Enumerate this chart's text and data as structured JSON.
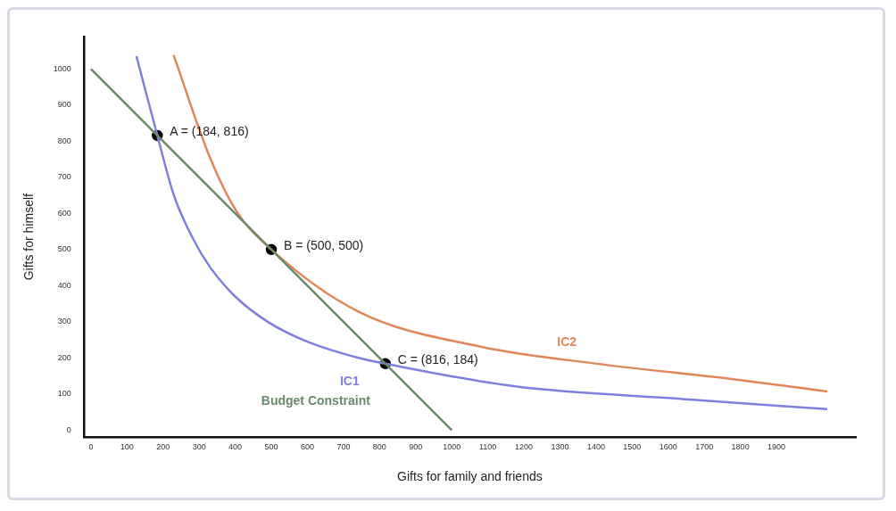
{
  "chart_data": {
    "type": "line",
    "xlabel": "Gifts for family and friends",
    "ylabel": "Gifts for himself",
    "xlim": [
      -20,
      2120
    ],
    "ylim": [
      -20,
      1090
    ],
    "xticks": [
      0,
      100,
      200,
      300,
      400,
      500,
      600,
      700,
      800,
      900,
      1000,
      1100,
      1200,
      1300,
      1400,
      1500,
      1600,
      1700,
      1800,
      1900
    ],
    "yticks": [
      0,
      100,
      200,
      300,
      400,
      500,
      600,
      700,
      800,
      900,
      1000
    ],
    "grid": false,
    "legend": false,
    "marker": "none",
    "line_style": "solid",
    "series": [
      {
        "name": "Budget Constraint",
        "color": "#6b8a6b",
        "x": [
          0,
          1000
        ],
        "values": [
          1000,
          0
        ]
      },
      {
        "name": "IC1",
        "color": "#7f7fe0",
        "x": [
          126,
          184,
          230,
          283,
          331,
          400,
          490,
          600,
          742,
          816,
          1176,
          1659,
          2041
        ],
        "values": [
          1036,
          816,
          650,
          530,
          450,
          370,
          300,
          245,
          200,
          184,
          121,
          85,
          58
        ]
      },
      {
        "name": "IC2",
        "color": "#e0875a",
        "x": [
          229,
          331,
          403,
          500,
          742,
          1080,
          1418,
          1780,
          2041
        ],
        "values": [
          1039,
          752,
          607,
          500,
          328,
          231,
          182,
          141,
          107
        ]
      },
      {
        "type": "scatter",
        "color": "#000000",
        "marker": "circle",
        "x": [
          184,
          500,
          816
        ],
        "values": [
          816,
          500,
          184
        ]
      }
    ],
    "annotations": [
      {
        "text": "A = (184, 816)",
        "x": 184,
        "y": 816
      },
      {
        "text": "B = (500, 500)",
        "x": 500,
        "y": 500
      },
      {
        "text": "C = (816, 184)",
        "x": 816,
        "y": 184
      }
    ]
  }
}
